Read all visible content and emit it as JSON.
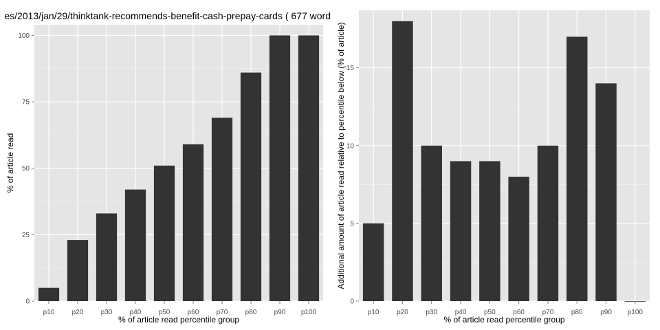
{
  "page_title": "es/2013/jan/29/thinktank-recommends-benefit-cash-prepay-cards ( 677 word",
  "colors": {
    "panel_bg": "#e5e5e5",
    "grid": "#ffffff",
    "bar": "#333333",
    "tick_text": "#4d4d4d"
  },
  "chart_data": [
    {
      "type": "bar",
      "categories": [
        "p10",
        "p20",
        "p30",
        "p40",
        "p50",
        "p60",
        "p70",
        "p80",
        "p90",
        "p100"
      ],
      "values": [
        5,
        23,
        33,
        42,
        51,
        59,
        69,
        86,
        100,
        100
      ],
      "xlabel": "% of article read percentile group",
      "ylabel": "% of article read",
      "ylim": [
        0,
        104
      ],
      "yticks": [
        0,
        25,
        50,
        75,
        100
      ],
      "grid": true
    },
    {
      "type": "bar",
      "categories": [
        "p10",
        "p20",
        "p30",
        "p40",
        "p50",
        "p60",
        "p70",
        "p80",
        "p90",
        "p100"
      ],
      "values": [
        5,
        18,
        10,
        9,
        9,
        8,
        10,
        17,
        14,
        0
      ],
      "xlabel": "% of article read percentile group",
      "ylabel": "Additional amount of article read relative to percentile below (% of article)",
      "ylim": [
        0,
        18.7
      ],
      "yticks": [
        0,
        5,
        10,
        15
      ],
      "grid": true
    }
  ]
}
